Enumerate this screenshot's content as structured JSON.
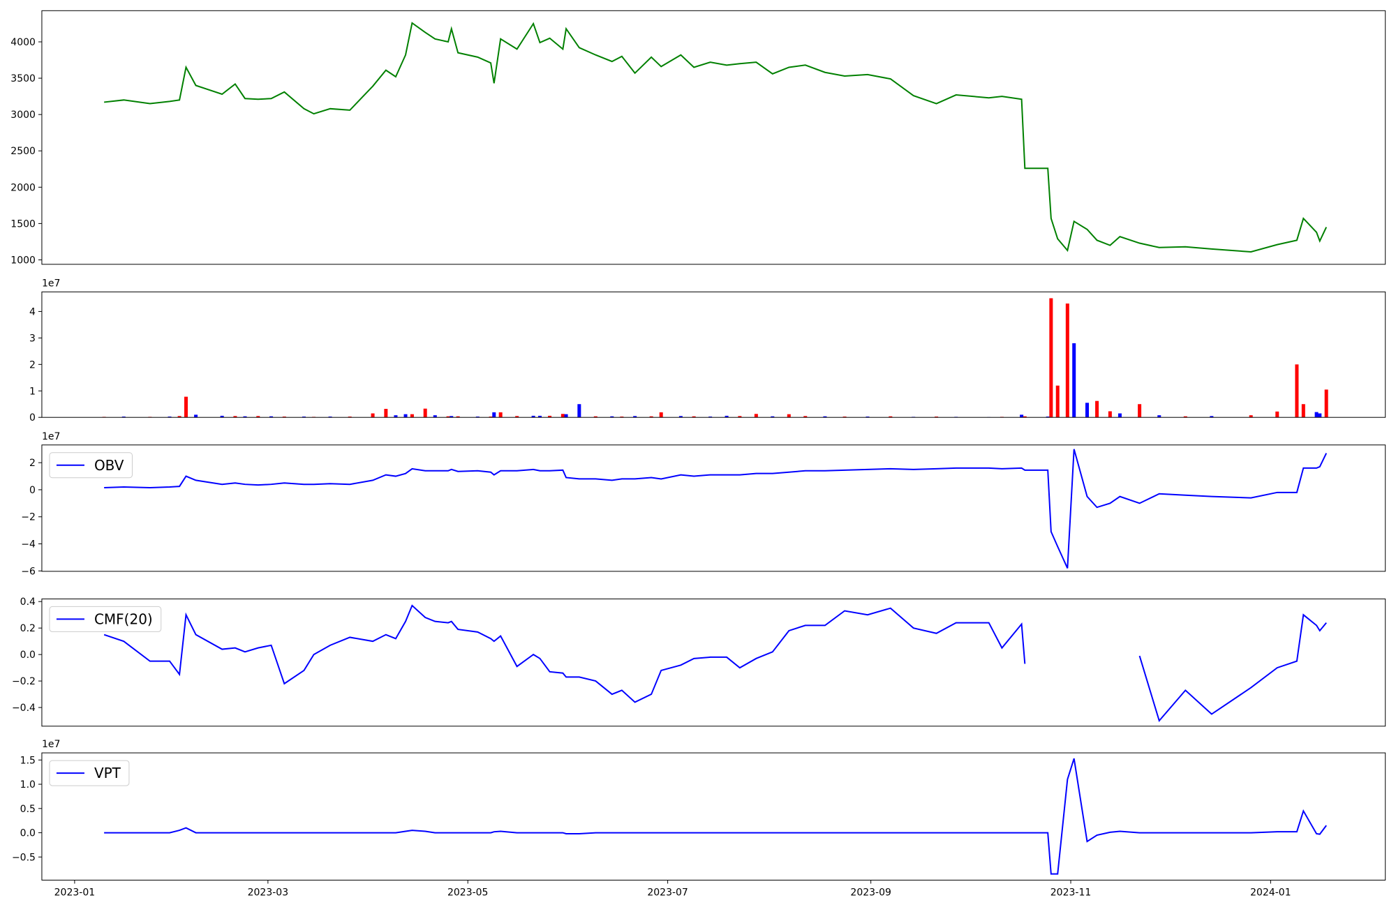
{
  "chart_data": [
    {
      "type": "line",
      "color": "green",
      "x": [
        19367,
        19373,
        19381,
        19387,
        19390,
        19392,
        19395,
        19403,
        19407,
        19410,
        19414,
        19418,
        19422,
        19428,
        19431,
        19436,
        19442,
        19449,
        19453,
        19456,
        19459,
        19461,
        19465,
        19468,
        19472,
        19473,
        19475,
        19481,
        19485,
        19486,
        19488,
        19493,
        19498,
        19500,
        19503,
        19507,
        19508,
        19512,
        19517,
        19522,
        19525,
        19529,
        19534,
        19537,
        19543,
        19547,
        19552,
        19557,
        19561,
        19566,
        19571,
        19576,
        19581,
        19587,
        19593,
        19600,
        19607,
        19614,
        19621,
        19627,
        19637,
        19641,
        19647,
        19648,
        19655,
        19656,
        19658,
        19661,
        19663,
        19667,
        19670,
        19674,
        19677,
        19683,
        19689,
        19697,
        19705,
        19717,
        19725,
        19731,
        19733,
        19737,
        19738,
        19740
      ],
      "values": [
        3170,
        3200,
        3150,
        3180,
        3200,
        3650,
        3400,
        3280,
        3420,
        3220,
        3210,
        3220,
        3310,
        3080,
        3010,
        3080,
        3060,
        3390,
        3610,
        3520,
        3820,
        4260,
        4130,
        4040,
        4000,
        4180,
        3850,
        3790,
        3710,
        3430,
        4040,
        3900,
        4250,
        3990,
        4050,
        3900,
        4180,
        3920,
        3820,
        3730,
        3800,
        3570,
        3790,
        3660,
        3820,
        3650,
        3720,
        3680,
        3700,
        3720,
        3560,
        3650,
        3680,
        3580,
        3530,
        3550,
        3490,
        3260,
        3150,
        3270,
        3230,
        3250,
        3210,
        2260,
        2260,
        1570,
        1290,
        1130,
        1530,
        1420,
        1270,
        1200,
        1320,
        1230,
        1170,
        1180,
        1150,
        1110,
        1210,
        1270,
        1570,
        1380,
        1260,
        1450
      ],
      "xlim": [
        19348,
        19758
      ],
      "ylim": [
        939,
        4429
      ],
      "yticks": [
        1000,
        1500,
        2000,
        2500,
        3000,
        3500,
        4000
      ]
    },
    {
      "type": "bar",
      "offset_text": "1e7",
      "x": [
        19367,
        19373,
        19381,
        19387,
        19390,
        19392,
        19395,
        19403,
        19407,
        19410,
        19414,
        19418,
        19422,
        19428,
        19431,
        19436,
        19442,
        19449,
        19453,
        19456,
        19459,
        19461,
        19465,
        19468,
        19472,
        19473,
        19475,
        19481,
        19485,
        19486,
        19488,
        19493,
        19498,
        19500,
        19503,
        19507,
        19508,
        19512,
        19517,
        19522,
        19525,
        19529,
        19534,
        19537,
        19543,
        19547,
        19552,
        19557,
        19561,
        19566,
        19571,
        19576,
        19581,
        19587,
        19593,
        19600,
        19607,
        19614,
        19621,
        19627,
        19637,
        19641,
        19647,
        19648,
        19655,
        19656,
        19658,
        19661,
        19663,
        19667,
        19670,
        19674,
        19677,
        19683,
        19689,
        19697,
        19705,
        19717,
        19725,
        19731,
        19733,
        19737,
        19738,
        19740
      ],
      "values": [
        200000,
        300000,
        200000,
        300000,
        500000,
        7800000,
        1000000,
        600000,
        500000,
        400000,
        500000,
        400000,
        300000,
        300000,
        200000,
        300000,
        300000,
        1500000,
        3200000,
        800000,
        1200000,
        1200000,
        3300000,
        800000,
        400000,
        500000,
        400000,
        300000,
        300000,
        1900000,
        1900000,
        500000,
        600000,
        600000,
        600000,
        1300000,
        1200000,
        5000000,
        400000,
        400000,
        300000,
        500000,
        400000,
        1900000,
        500000,
        400000,
        300000,
        600000,
        500000,
        1300000,
        400000,
        1200000,
        500000,
        400000,
        300000,
        300000,
        400000,
        200000,
        300000,
        200000,
        100000,
        200000,
        1000000,
        400000,
        300000,
        45000000,
        12000000,
        43000000,
        28000000,
        5500000,
        6200000,
        2300000,
        1500000,
        5000000,
        800000,
        400000,
        500000,
        800000,
        2200000,
        20000000,
        5000000,
        2000000,
        1500000,
        10500000
      ],
      "colors": [
        "#ff0000",
        "#0000ff",
        "#ff0000",
        "#0000ff",
        "#ff0000",
        "#ff0000",
        "#0000ff",
        "#0000ff",
        "#ff0000",
        "#0000ff",
        "#ff0000",
        "#0000ff",
        "#ff0000",
        "#0000ff",
        "#ff0000",
        "#0000ff",
        "#ff0000",
        "#ff0000",
        "#ff0000",
        "#0000ff",
        "#0000ff",
        "#ff0000",
        "#ff0000",
        "#0000ff",
        "#ff0000",
        "#0000ff",
        "#ff0000",
        "#0000ff",
        "#ff0000",
        "#0000ff",
        "#ff0000",
        "#ff0000",
        "#0000ff",
        "#0000ff",
        "#ff0000",
        "#ff0000",
        "#0000ff",
        "#0000ff",
        "#ff0000",
        "#0000ff",
        "#ff0000",
        "#0000ff",
        "#ff0000",
        "#ff0000",
        "#0000ff",
        "#ff0000",
        "#0000ff",
        "#0000ff",
        "#ff0000",
        "#ff0000",
        "#0000ff",
        "#ff0000",
        "#ff0000",
        "#0000ff",
        "#ff0000",
        "#0000ff",
        "#ff0000",
        "#0000ff",
        "#ff0000",
        "#0000ff",
        "#0000ff",
        "#ff0000",
        "#0000ff",
        "#ff0000",
        "#0000ff",
        "#ff0000",
        "#ff0000",
        "#ff0000",
        "#0000ff",
        "#0000ff",
        "#ff0000",
        "#ff0000",
        "#0000ff",
        "#ff0000",
        "#0000ff",
        "#ff0000",
        "#0000ff",
        "#ff0000",
        "#ff0000",
        "#ff0000",
        "#ff0000",
        "#0000ff",
        "#0000ff",
        "#ff0000"
      ],
      "xlim": [
        19348,
        19758
      ],
      "ylim": [
        0,
        47400000
      ],
      "yticks": [
        0,
        {
          "value": 10000000,
          "label": "1"
        },
        {
          "value": 20000000,
          "label": "2"
        },
        {
          "value": 30000000,
          "label": "3"
        },
        {
          "value": 40000000,
          "label": "4"
        }
      ]
    },
    {
      "type": "line",
      "offset_text": "1e7",
      "legend": "upper left",
      "x": [
        19367,
        19373,
        19381,
        19387,
        19390,
        19392,
        19395,
        19403,
        19407,
        19410,
        19414,
        19418,
        19422,
        19428,
        19431,
        19436,
        19442,
        19449,
        19453,
        19456,
        19459,
        19461,
        19465,
        19468,
        19472,
        19473,
        19475,
        19481,
        19485,
        19486,
        19488,
        19493,
        19498,
        19500,
        19503,
        19507,
        19508,
        19512,
        19517,
        19522,
        19525,
        19529,
        19534,
        19537,
        19543,
        19547,
        19552,
        19557,
        19561,
        19566,
        19571,
        19576,
        19581,
        19587,
        19593,
        19600,
        19607,
        19614,
        19621,
        19627,
        19637,
        19641,
        19647,
        19648,
        19655,
        19656,
        19658,
        19661,
        19663,
        19667,
        19670,
        19674,
        19677,
        19683,
        19689,
        19697,
        19705,
        19717,
        19725,
        19731,
        19733,
        19737,
        19738,
        19740
      ],
      "series": [
        {
          "name": "OBV",
          "color": "blue",
          "values": [
            1500000,
            2000000,
            1500000,
            2000000,
            2500000,
            10000000,
            7000000,
            4000000,
            5000000,
            4000000,
            3500000,
            4000000,
            5000000,
            4000000,
            4000000,
            4500000,
            4000000,
            7000000,
            11000000,
            10000000,
            12000000,
            15500000,
            14000000,
            14000000,
            14000000,
            15000000,
            13500000,
            14000000,
            13000000,
            11000000,
            14000000,
            14000000,
            15000000,
            14000000,
            14000000,
            14500000,
            9000000,
            8000000,
            8000000,
            7000000,
            8000000,
            8000000,
            9000000,
            8000000,
            11000000,
            10000000,
            11000000,
            11000000,
            11000000,
            12000000,
            12000000,
            13000000,
            14000000,
            14000000,
            14500000,
            15000000,
            15500000,
            15000000,
            15500000,
            16000000,
            16000000,
            15500000,
            16000000,
            14500000,
            14500000,
            -31000000,
            -42000000,
            -58000000,
            30000000,
            -5000000,
            -13000000,
            -10000000,
            -5000000,
            -10000000,
            -3000000,
            -4000000,
            -5000000,
            -6000000,
            -2000000,
            -2000000,
            16000000,
            16000000,
            17000000,
            27000000
          ]
        }
      ],
      "xlim": [
        19348,
        19758
      ],
      "ylim": [
        -60300000,
        33100000
      ],
      "yticks": [
        {
          "value": -60000000,
          "label": "−6"
        },
        {
          "value": -40000000,
          "label": "−4"
        },
        {
          "value": -20000000,
          "label": "−2"
        },
        0,
        {
          "value": 20000000,
          "label": "2"
        }
      ]
    },
    {
      "type": "line",
      "legend": "upper left",
      "x": [
        19367,
        19373,
        19381,
        19387,
        19390,
        19392,
        19395,
        19403,
        19407,
        19410,
        19414,
        19418,
        19422,
        19428,
        19431,
        19436,
        19442,
        19449,
        19453,
        19456,
        19459,
        19461,
        19465,
        19468,
        19472,
        19473,
        19475,
        19481,
        19485,
        19486,
        19488,
        19493,
        19498,
        19500,
        19503,
        19507,
        19508,
        19512,
        19517,
        19522,
        19525,
        19529,
        19534,
        19537,
        19543,
        19547,
        19552,
        19557,
        19561,
        19566,
        19571,
        19576,
        19581,
        19587,
        19593,
        19600,
        19607,
        19614,
        19621,
        19627,
        19637,
        19641,
        19647,
        19648,
        19655,
        19656,
        19658,
        19661,
        19663,
        19667,
        19670,
        19674,
        19677,
        19683,
        19689,
        19697,
        19705,
        19717,
        19725,
        19731,
        19733,
        19737,
        19738,
        19740
      ],
      "series": [
        {
          "name": "CMF(20)",
          "color": "blue",
          "values": [
            0.15,
            0.1,
            -0.05,
            -0.05,
            -0.15,
            0.3,
            0.15,
            0.04,
            0.05,
            0.02,
            0.05,
            0.07,
            -0.22,
            -0.12,
            0.0,
            0.07,
            0.13,
            0.1,
            0.15,
            0.12,
            0.25,
            0.37,
            0.28,
            0.25,
            0.24,
            0.25,
            0.19,
            0.17,
            0.12,
            0.1,
            0.14,
            -0.09,
            0.0,
            -0.03,
            -0.13,
            -0.14,
            -0.17,
            -0.17,
            -0.2,
            -0.3,
            -0.27,
            -0.36,
            -0.3,
            -0.12,
            -0.08,
            -0.03,
            -0.02,
            -0.02,
            -0.1,
            -0.03,
            0.02,
            0.18,
            0.22,
            0.22,
            0.33,
            0.3,
            0.35,
            0.2,
            0.16,
            0.24,
            0.24,
            0.05,
            0.23,
            -0.07,
            null,
            null,
            null,
            null,
            null,
            null,
            null,
            null,
            null,
            -0.01,
            -0.5,
            -0.27,
            -0.45,
            -0.25,
            -0.1,
            -0.05,
            0.3,
            0.22,
            0.18,
            0.24
          ]
        }
      ],
      "xlim": [
        19348,
        19758
      ],
      "ylim": [
        -0.541,
        0.42
      ],
      "yticks": [
        {
          "value": -0.4,
          "label": "−0.4"
        },
        {
          "value": -0.2,
          "label": "−0.2"
        },
        {
          "value": 0,
          "label": "0.0"
        },
        0.2,
        0.4
      ]
    },
    {
      "type": "line",
      "offset_text": "1e7",
      "legend": "upper left",
      "x": [
        19367,
        19373,
        19381,
        19387,
        19390,
        19392,
        19395,
        19403,
        19407,
        19410,
        19414,
        19418,
        19422,
        19428,
        19431,
        19436,
        19442,
        19449,
        19453,
        19456,
        19459,
        19461,
        19465,
        19468,
        19472,
        19473,
        19475,
        19481,
        19485,
        19486,
        19488,
        19493,
        19498,
        19500,
        19503,
        19507,
        19508,
        19512,
        19517,
        19522,
        19525,
        19529,
        19534,
        19537,
        19543,
        19547,
        19552,
        19557,
        19561,
        19566,
        19571,
        19576,
        19581,
        19587,
        19593,
        19600,
        19607,
        19614,
        19621,
        19627,
        19637,
        19641,
        19647,
        19648,
        19655,
        19656,
        19658,
        19661,
        19663,
        19667,
        19670,
        19674,
        19677,
        19683,
        19689,
        19697,
        19705,
        19717,
        19725,
        19731,
        19733,
        19737,
        19738,
        19740
      ],
      "series": [
        {
          "name": "VPT",
          "color": "blue",
          "values": [
            0,
            0,
            0,
            0,
            500000,
            1000000,
            0,
            0,
            0,
            0,
            0,
            0,
            0,
            0,
            0,
            0,
            0,
            0,
            0,
            0,
            300000,
            500000,
            300000,
            0,
            0,
            0,
            0,
            0,
            0,
            200000,
            300000,
            0,
            0,
            0,
            0,
            0,
            -200000,
            -200000,
            0,
            0,
            0,
            0,
            0,
            0,
            0,
            0,
            0,
            0,
            0,
            0,
            0,
            0,
            0,
            0,
            0,
            0,
            0,
            0,
            0,
            0,
            0,
            0,
            0,
            0,
            0,
            -8500000,
            -8500000,
            11000000,
            15300000,
            -1800000,
            -500000,
            100000,
            300000,
            0,
            0,
            0,
            0,
            0,
            200000,
            200000,
            4500000,
            -200000,
            -300000,
            1500000
          ]
        }
      ],
      "xlim": [
        19348,
        19758
      ],
      "ylim": [
        -9770000,
        16470000
      ],
      "yticks": [
        {
          "value": -5000000,
          "label": "−0.5"
        },
        {
          "value": 0,
          "label": "0.0"
        },
        {
          "value": 5000000,
          "label": "0.5"
        },
        {
          "value": 10000000,
          "label": "1.0"
        },
        {
          "value": 15000000,
          "label": "1.5"
        }
      ],
      "xticks": [
        {
          "value": 19358,
          "label": "2023-01"
        },
        {
          "value": 19417,
          "label": "2023-03"
        },
        {
          "value": 19478,
          "label": "2023-05"
        },
        {
          "value": 19539,
          "label": "2023-07"
        },
        {
          "value": 19601,
          "label": "2023-09"
        },
        {
          "value": 19662,
          "label": "2023-11"
        },
        {
          "value": 19723,
          "label": "2024-01"
        }
      ]
    }
  ]
}
